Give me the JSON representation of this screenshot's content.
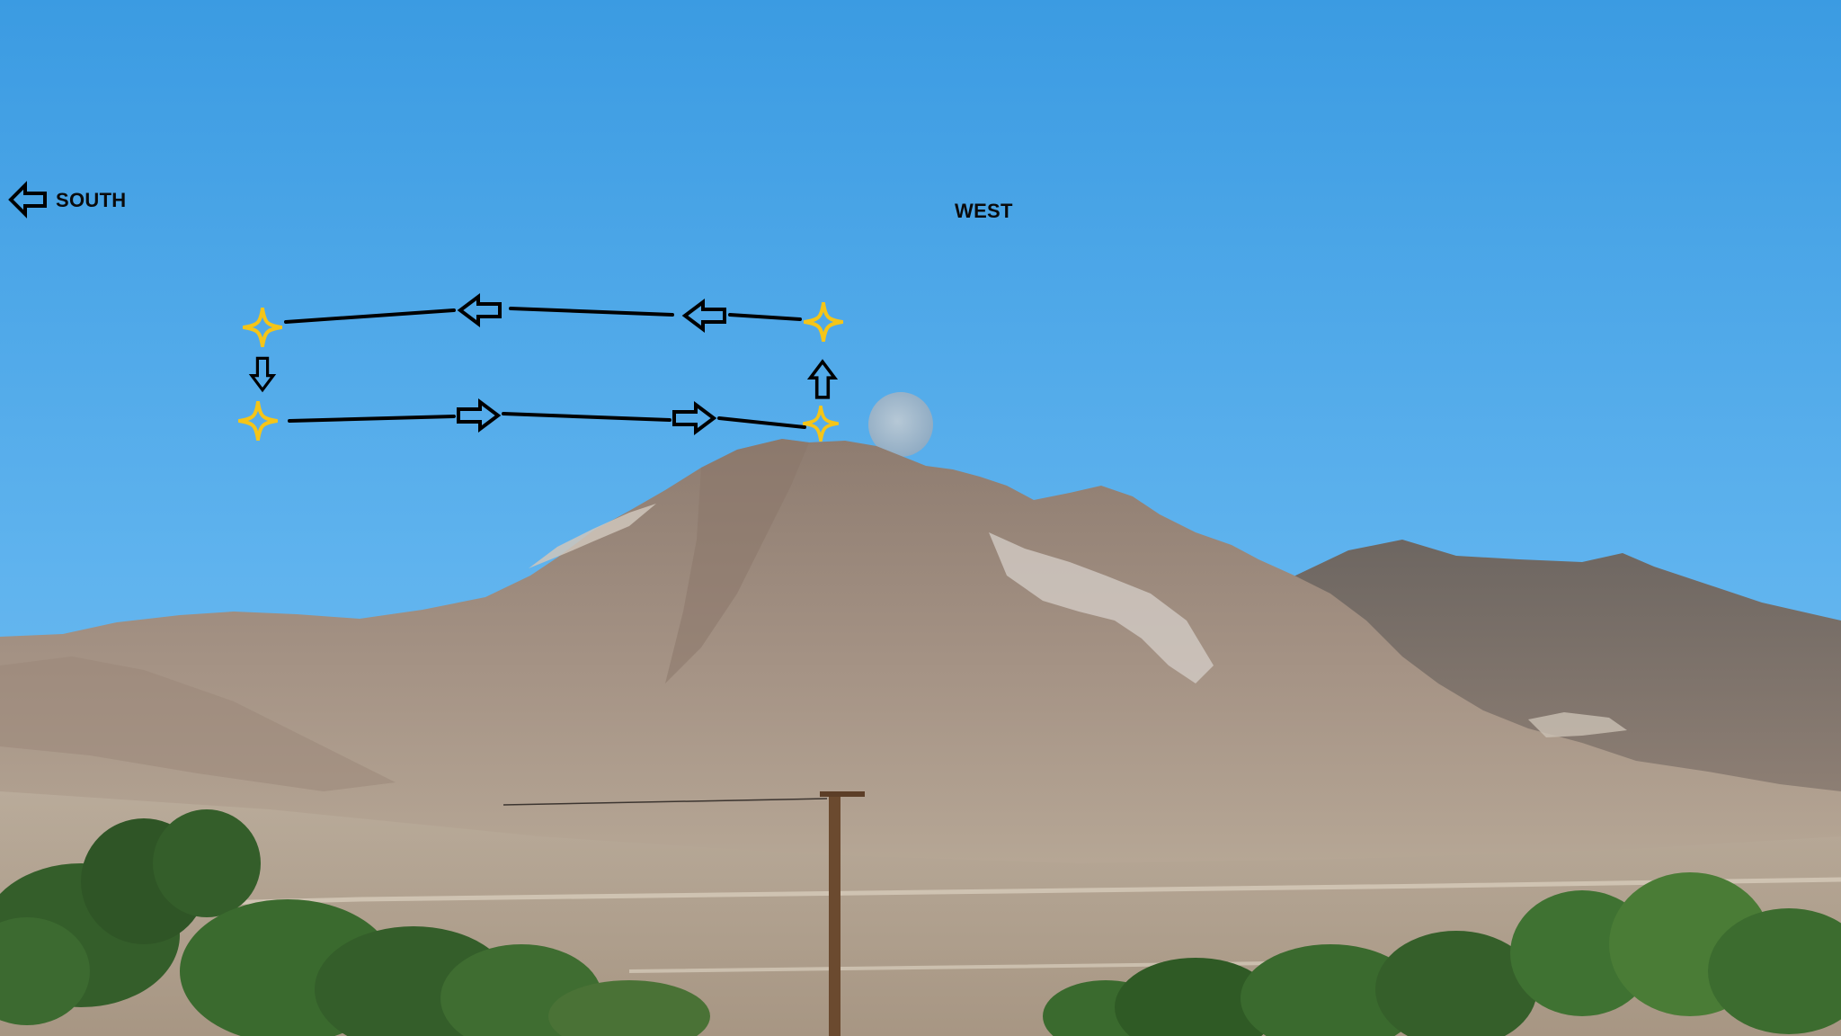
{
  "labels": {
    "south": "SOUTH",
    "west": "WEST"
  },
  "annotation": {
    "path_color": "#000000",
    "marker_color": "#f5c518",
    "marker_icon": "four-point-star-icon",
    "arrow_icon": "hollow-arrow-icon"
  },
  "scene": {
    "sky_top": "#3b9be2",
    "sky_bottom": "#6ab9ef",
    "moon_color": "#9bb4c9",
    "mountain_color": "#9d8a7c",
    "foliage_color": "#355f2a"
  }
}
